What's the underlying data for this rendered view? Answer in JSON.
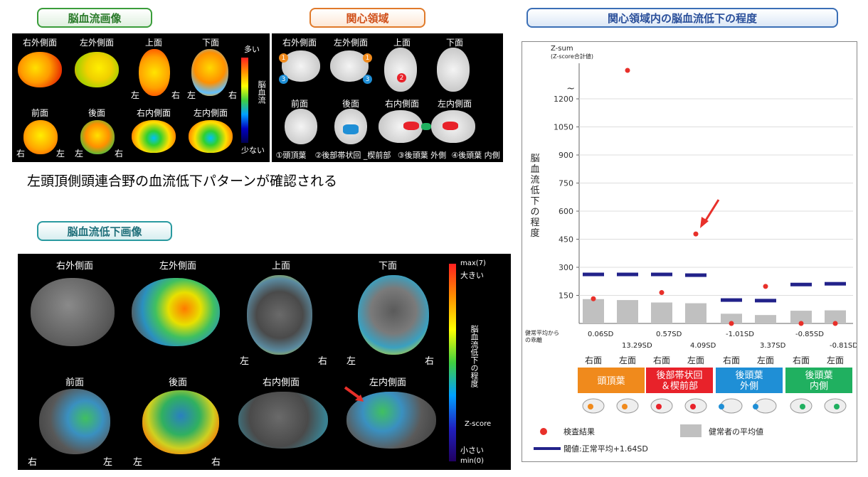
{
  "tabs": {
    "cbf_image": "脳血流画像",
    "roi": "関心領域",
    "roi_decrease": "関心領域内の脳血流低下の程度",
    "cbf_decrease_image": "脳血流低下画像"
  },
  "cbf_panel": {
    "views_top": [
      "右外側面",
      "左外側面",
      "上面",
      "下面"
    ],
    "views_bottom": [
      "前面",
      "後面",
      "右内側面",
      "左内側面"
    ],
    "side_left": "左",
    "side_right": "右",
    "legend_high": "多い",
    "legend_low": "少ない",
    "legend_title": "脳血流"
  },
  "roi_panel": {
    "views_top": [
      "右外側面",
      "左外側面",
      "上面",
      "下面"
    ],
    "views_bottom": [
      "前面",
      "後面",
      "右内側面",
      "左内側面"
    ],
    "labels": [
      "①頭頂葉",
      "②後部帯状回 _楔前部",
      "③後頭葉 外側",
      "④後頭葉 内側"
    ],
    "label_colors": [
      "#f08a1c",
      "#e8222a",
      "#1f8fd6",
      "#20b060"
    ]
  },
  "finding_text": "左頭頂側頭連合野の血流低下パターンが確認される",
  "decrease_panel": {
    "views_top": [
      "右外側面",
      "左外側面",
      "上面",
      "下面"
    ],
    "views_bottom": [
      "前面",
      "後面",
      "右内側面",
      "左内側面"
    ],
    "legend_max": "max(7)",
    "legend_big": "大きい",
    "legend_title": "脳血流低下の程度",
    "legend_zscore": "Z-score",
    "legend_small": "小さい",
    "legend_min": "min(0)"
  },
  "chart_data": {
    "type": "scatter",
    "ylabel": "脳血流低下の程度",
    "y_axis_title": "Z-sum",
    "y_axis_subtitle": "(Z-score合計値)",
    "y_ticks": [
      150,
      300,
      450,
      600,
      750,
      900,
      1050,
      1200
    ],
    "ylim": [
      0,
      1400
    ],
    "categories": [
      "右面",
      "左面",
      "右面",
      "左面",
      "右面",
      "左面",
      "右面",
      "左面"
    ],
    "groups": [
      {
        "label": "頭頂葉",
        "color": "#f08a1c"
      },
      {
        "label": "後部帯状回\n＆楔前部",
        "color": "#e8222a"
      },
      {
        "label": "後頭葉\n外側",
        "color": "#1f8fd6"
      },
      {
        "label": "後頭葉\n内側",
        "color": "#20b060"
      }
    ],
    "healthy_avg": [
      130,
      125,
      112,
      108,
      52,
      45,
      68,
      70
    ],
    "threshold": [
      262,
      262,
      262,
      258,
      125,
      122,
      208,
      212
    ],
    "result": [
      132,
      1330,
      165,
      478,
      0,
      198,
      0,
      0
    ],
    "deviation_row_label": "健常平均からの乖離",
    "deviation": [
      "0.06SD",
      "13.29SD",
      "0.57SD",
      "4.09SD",
      "-1.01SD",
      "3.37SD",
      "-0.85SD",
      "-0.81SD"
    ],
    "legend": {
      "result": "検査結果",
      "healthy": "健常者の平均値",
      "threshold": "閾値:正常平均+1.64SD"
    },
    "colors": {
      "result": "#e8302a",
      "healthy": "#c0c0c0",
      "threshold": "#22228a"
    }
  }
}
